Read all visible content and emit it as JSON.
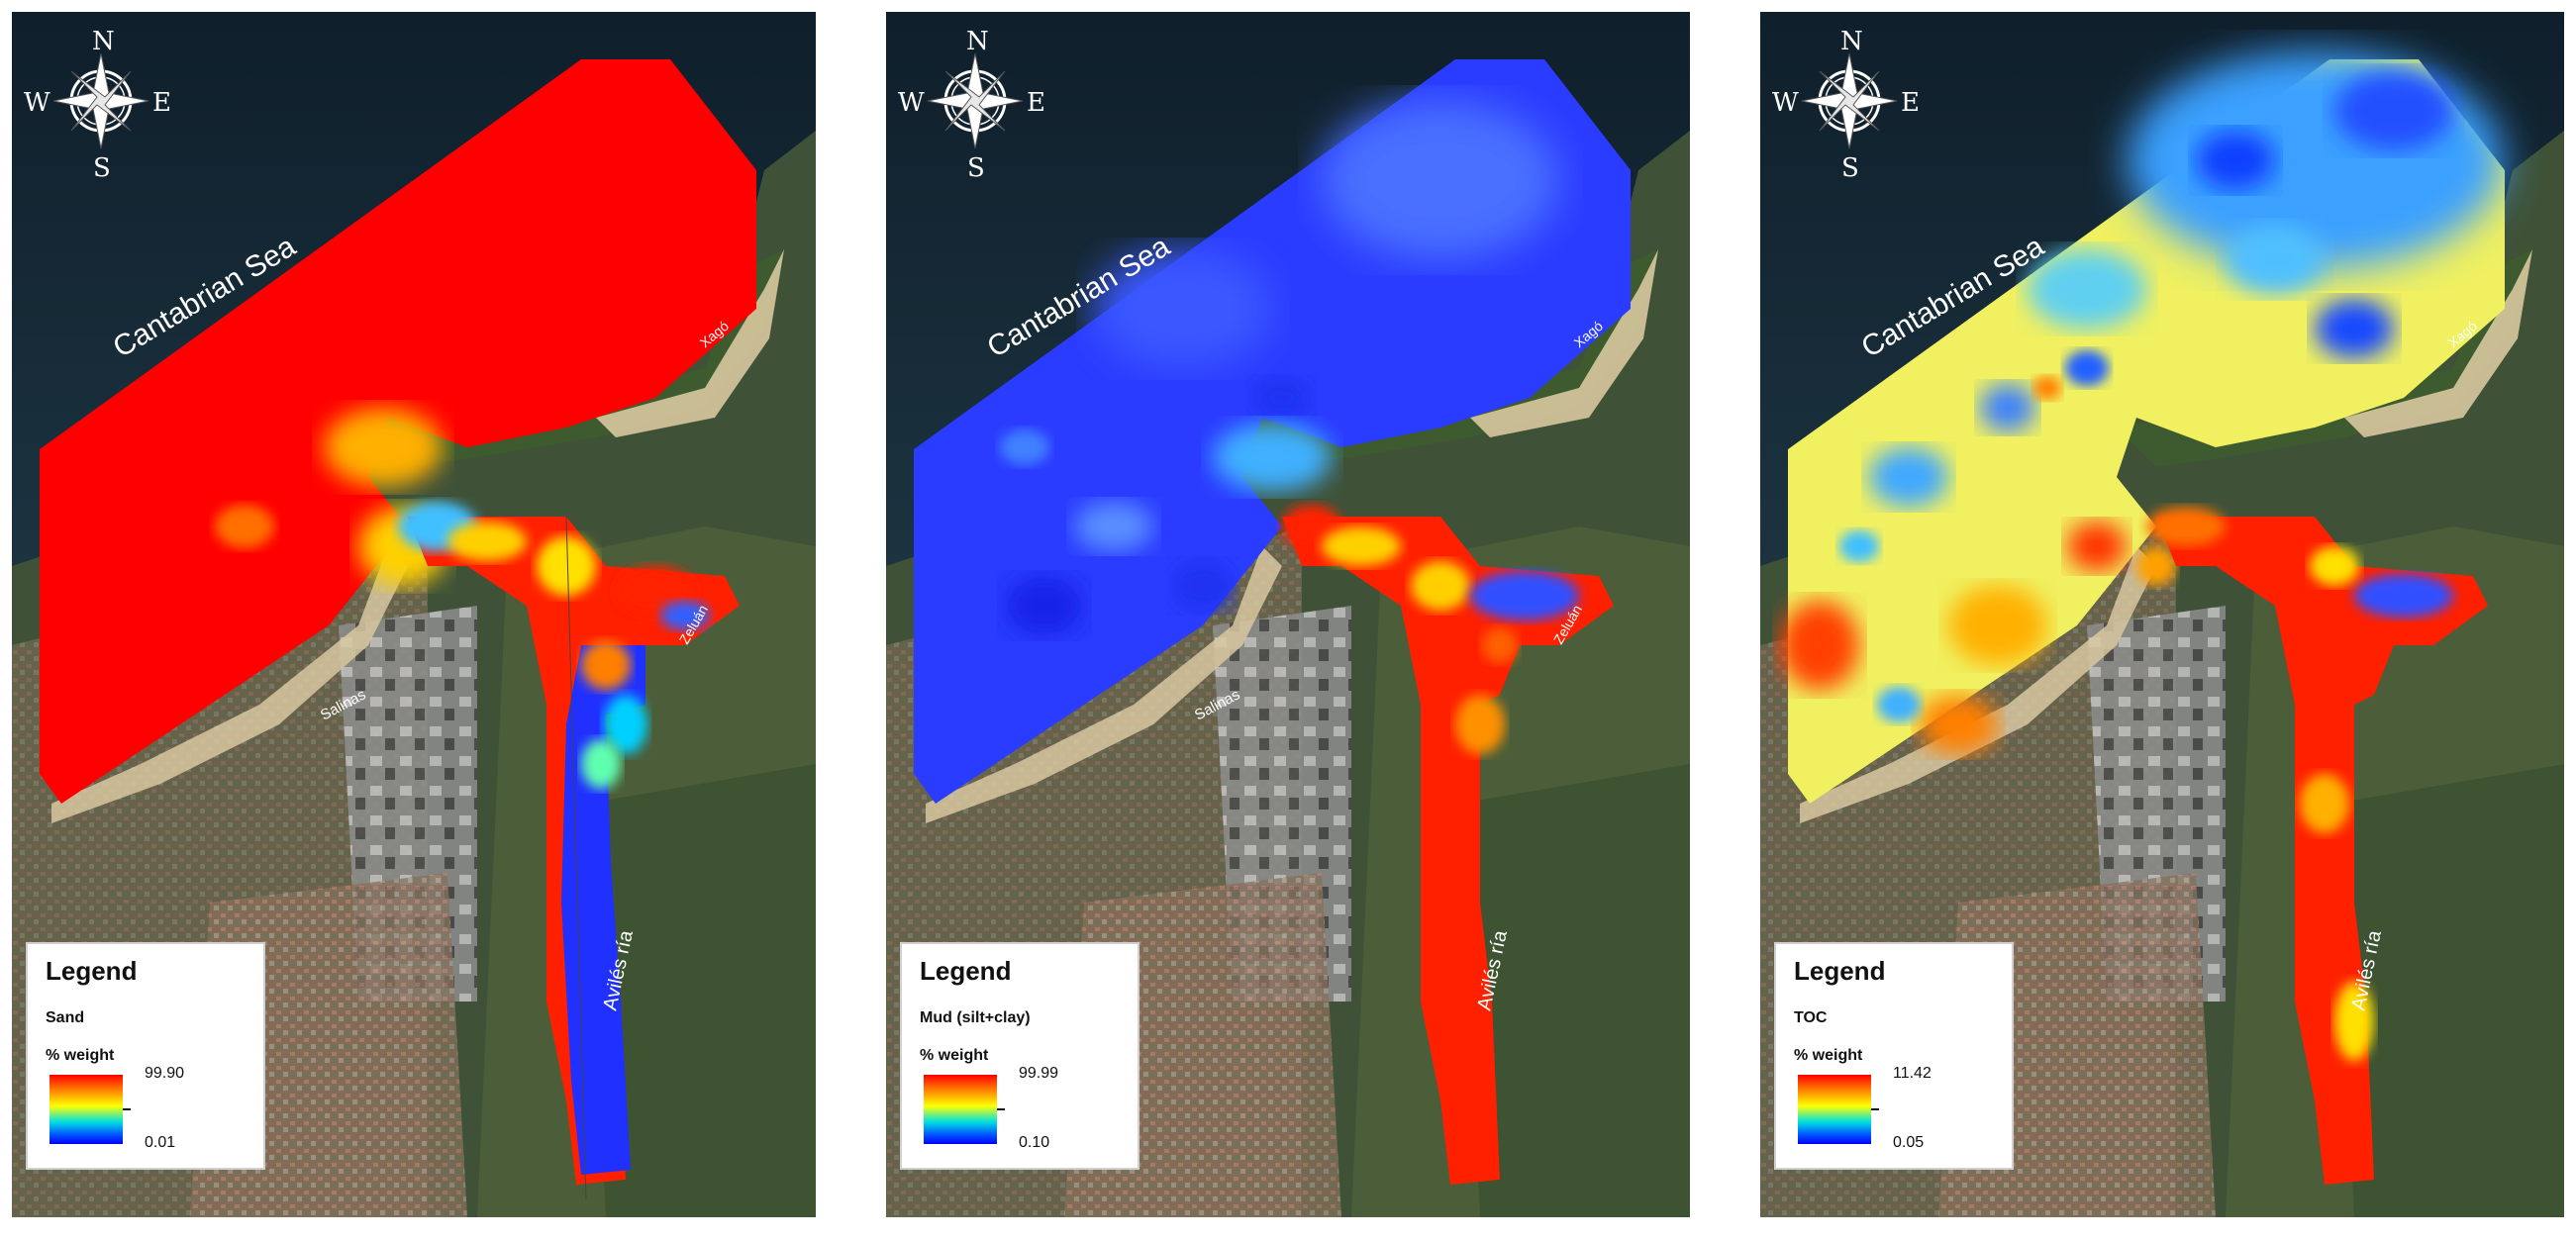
{
  "compass": {
    "n": "N",
    "s": "S",
    "e": "E",
    "w": "W"
  },
  "labels": {
    "sea": "Cantabrian Sea",
    "beach_west": "Salinas",
    "beach_east": "Xagó",
    "inlet": "Zeluán",
    "river": "Avilés ría"
  },
  "colors": {
    "water": "#142733",
    "high": "#ff0000",
    "low": "#0000ff"
  },
  "panels": [
    {
      "id": "sand",
      "legend_title": "Legend",
      "variable": "Sand",
      "unit": "% weight",
      "max": "99.90",
      "min": "0.01"
    },
    {
      "id": "mud",
      "legend_title": "Legend",
      "variable": "Mud (silt+clay)",
      "unit": "% weight",
      "max": "99.99",
      "min": "0.10"
    },
    {
      "id": "toc",
      "legend_title": "Legend",
      "variable": "TOC",
      "unit": "% weight",
      "max": "11.42",
      "min": "0.05"
    }
  ]
}
